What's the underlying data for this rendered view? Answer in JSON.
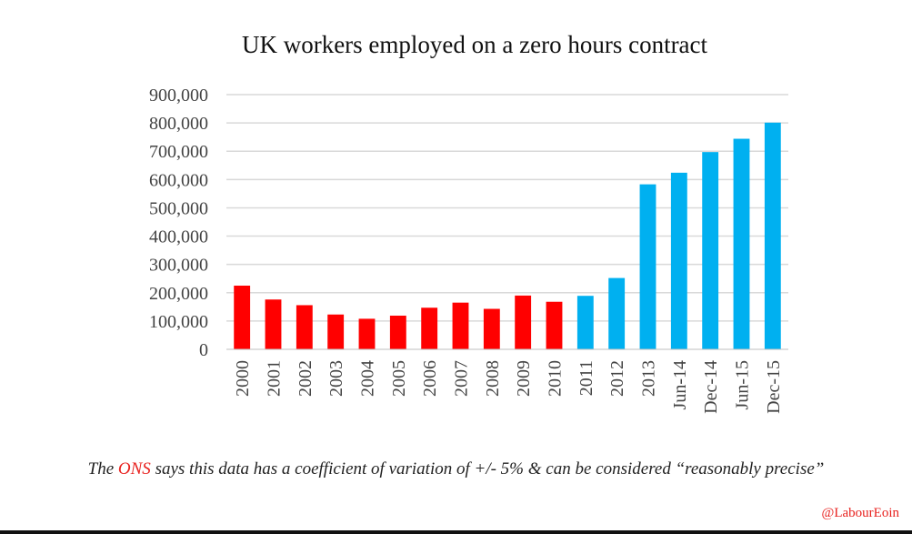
{
  "chart_data": {
    "type": "bar",
    "title": "UK workers employed on a zero hours contract",
    "xlabel": "",
    "ylabel": "",
    "ylim": [
      0,
      900000
    ],
    "yticks": [
      0,
      100000,
      200000,
      300000,
      400000,
      500000,
      600000,
      700000,
      800000,
      900000
    ],
    "ytick_labels": [
      "0",
      "100,000",
      "200,000",
      "300,000",
      "400,000",
      "500,000",
      "600,000",
      "700,000",
      "800,000",
      "900,000"
    ],
    "grid": true,
    "legend": "none",
    "categories": [
      "2000",
      "2001",
      "2002",
      "2003",
      "2004",
      "2005",
      "2006",
      "2007",
      "2008",
      "2009",
      "2010",
      "2011",
      "2012",
      "2013",
      "Jun-14",
      "Dec-14",
      "Jun-15",
      "Dec-15"
    ],
    "values": [
      225000,
      176000,
      156000,
      123000,
      108000,
      119000,
      147000,
      165000,
      143000,
      190000,
      168000,
      189000,
      252000,
      583000,
      624000,
      697000,
      744000,
      801000
    ],
    "bar_colors": [
      "#ff0000",
      "#ff0000",
      "#ff0000",
      "#ff0000",
      "#ff0000",
      "#ff0000",
      "#ff0000",
      "#ff0000",
      "#ff0000",
      "#ff0000",
      "#ff0000",
      "#00b0f0",
      "#00b0f0",
      "#00b0f0",
      "#00b0f0",
      "#00b0f0",
      "#00b0f0",
      "#00b0f0"
    ]
  },
  "footnote": {
    "prefix": "The ",
    "highlight": "ONS",
    "suffix": " says this data has a coefficient of variation of +/- 5% & can be considered “reasonably precise”"
  },
  "credit": "@LabourEoin",
  "colors": {
    "red": "#ff0000",
    "blue": "#00b0f0",
    "grid": "#d9d9d9",
    "accent": "#e8211e"
  }
}
